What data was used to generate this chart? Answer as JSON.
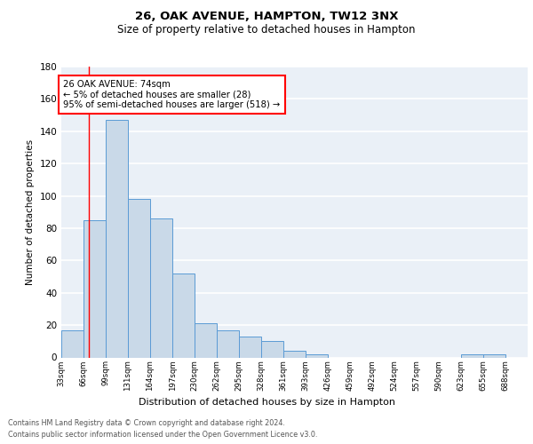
{
  "title": "26, OAK AVENUE, HAMPTON, TW12 3NX",
  "subtitle": "Size of property relative to detached houses in Hampton",
  "xlabel": "Distribution of detached houses by size in Hampton",
  "ylabel": "Number of detached properties",
  "bar_color": "#c9d9e8",
  "bar_edge_color": "#5b9bd5",
  "background_color": "#eaf0f7",
  "grid_color": "white",
  "annotation_title": "26 OAK AVENUE: 74sqm",
  "annotation_line1": "← 5% of detached houses are smaller (28)",
  "annotation_line2": "95% of semi-detached houses are larger (518) →",
  "property_line_x": 74,
  "bin_edges": [
    33,
    66,
    99,
    131,
    164,
    197,
    230,
    262,
    295,
    328,
    361,
    393,
    426,
    459,
    492,
    524,
    557,
    590,
    623,
    655,
    688,
    721
  ],
  "bar_heights": [
    17,
    85,
    147,
    98,
    86,
    52,
    21,
    17,
    13,
    10,
    4,
    2,
    0,
    0,
    0,
    0,
    0,
    0,
    2,
    2,
    0
  ],
  "xlabels": [
    "33sqm",
    "66sqm",
    "99sqm",
    "131sqm",
    "164sqm",
    "197sqm",
    "230sqm",
    "262sqm",
    "295sqm",
    "328sqm",
    "361sqm",
    "393sqm",
    "426sqm",
    "459sqm",
    "492sqm",
    "524sqm",
    "557sqm",
    "590sqm",
    "623sqm",
    "655sqm",
    "688sqm"
  ],
  "ylim": [
    0,
    180
  ],
  "yticks": [
    0,
    20,
    40,
    60,
    80,
    100,
    120,
    140,
    160,
    180
  ],
  "footnote1": "Contains HM Land Registry data © Crown copyright and database right 2024.",
  "footnote2": "Contains public sector information licensed under the Open Government Licence v3.0."
}
